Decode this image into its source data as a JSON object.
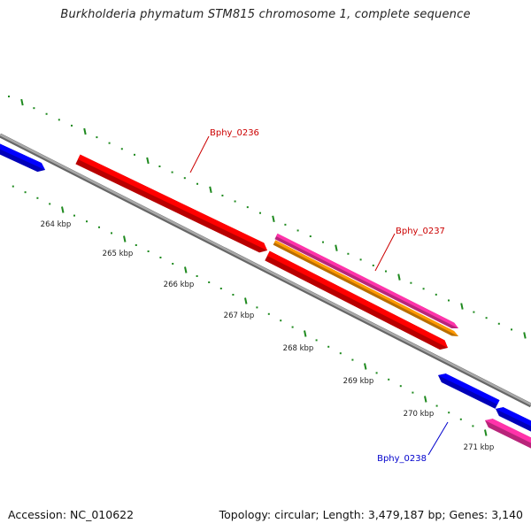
{
  "title": "Burkholderia phymatum STM815 chromosome 1, complete sequence",
  "footer": {
    "accession": "Accession: NC_010622",
    "summary": "Topology: circular; Length: 3,479,187 bp; Genes: 3,140"
  },
  "colors": {
    "backbone": "#8c8c8c",
    "tick": "#1f8a1f",
    "forward_cds": "#ff0000",
    "reverse_cds": "#0000ff",
    "pink_feature": "#ff33aa",
    "orange_feature": "#ff9900",
    "forward_label": "#cc0000",
    "reverse_label": "#0000cc"
  },
  "scale": {
    "tick_labels": [
      "264 kbp",
      "265 kbp",
      "266 kbp",
      "267 kbp",
      "268 kbp",
      "269 kbp",
      "270 kbp",
      "271 kbp"
    ]
  },
  "genes": [
    {
      "label": "Bphy_0236",
      "strand": "forward"
    },
    {
      "label": "Bphy_0237",
      "strand": "forward"
    },
    {
      "label": "Bphy_0238",
      "strand": "reverse"
    }
  ]
}
